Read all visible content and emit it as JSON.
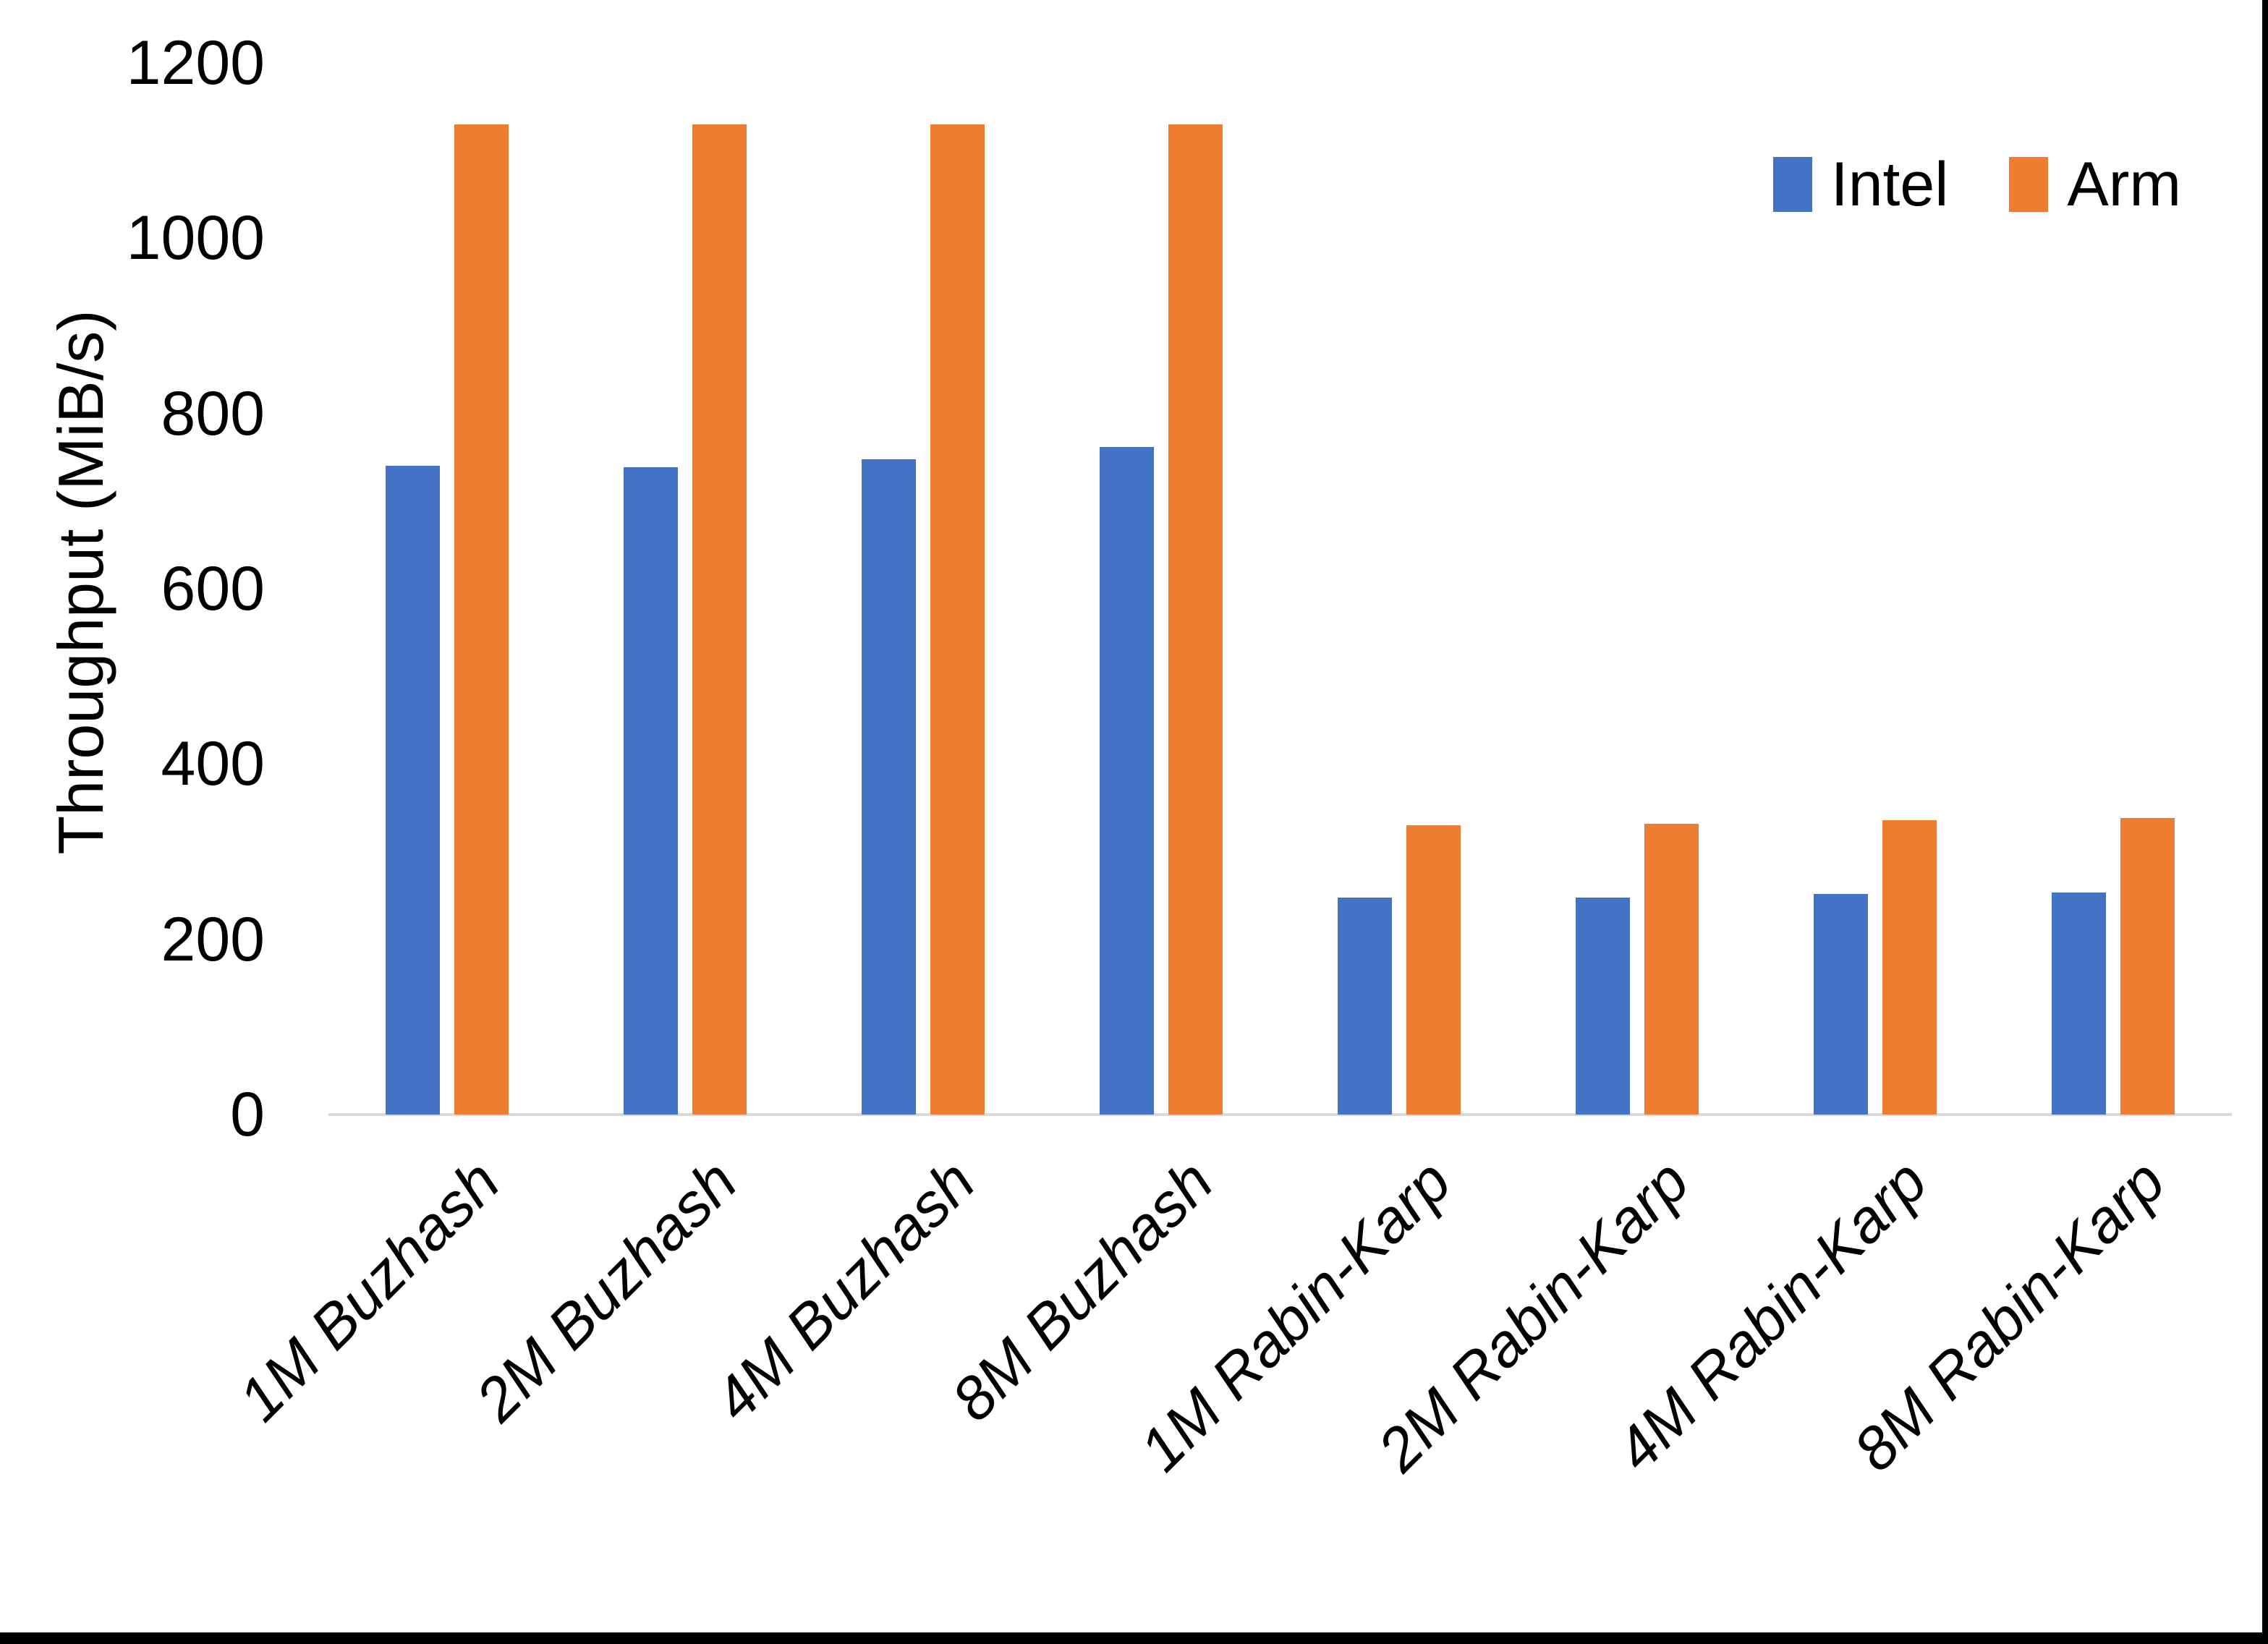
{
  "chart_data": {
    "type": "bar",
    "title": "",
    "xlabel": "",
    "ylabel": "Throughput (MiB/s)",
    "categories": [
      "1M Buzhash",
      "2M Buzhash",
      "4M Buzhash",
      "8M Buzhash",
      "1M Rabin-Karp",
      "2M Rabin-Karp",
      "4M Rabin-Karp",
      "8M Rabin-Karp"
    ],
    "series": [
      {
        "name": "Intel",
        "color": "#4472C4",
        "values": [
          740,
          739,
          748,
          762,
          248,
          248,
          252,
          253
        ]
      },
      {
        "name": "Arm",
        "color": "#ED7D31",
        "values": [
          1130,
          1130,
          1130,
          1130,
          330,
          332,
          336,
          338
        ]
      }
    ],
    "y_ticks": [
      0,
      200,
      400,
      600,
      800,
      1000,
      1200
    ],
    "ylim": [
      0,
      1200
    ],
    "grid": false,
    "legend_position": "top-right",
    "axis_line_color": "#D9D9D9",
    "text_color": "#000000",
    "plot_background": "#FFFFFF"
  }
}
